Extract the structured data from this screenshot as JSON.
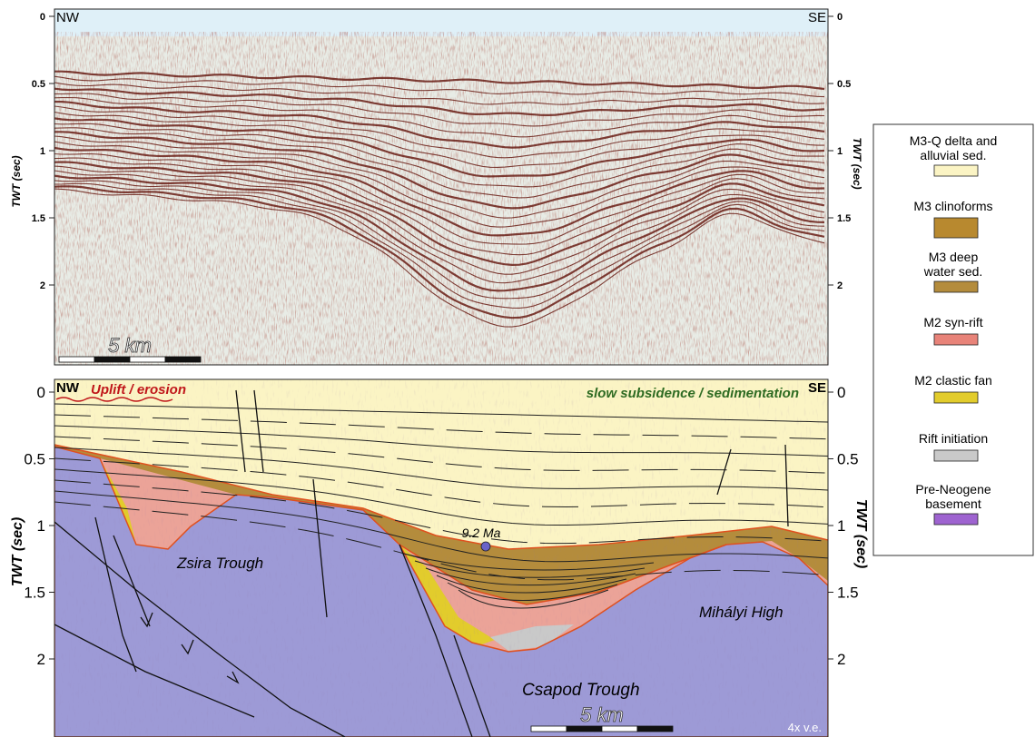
{
  "seismic": {
    "left_label": "NW",
    "right_label": "SE",
    "axis_label": "TWT (sec)",
    "ticks": [
      0,
      0.5,
      1,
      1.5,
      2
    ],
    "scale_bar": "5 km"
  },
  "interpretation": {
    "left_label": "NW",
    "right_label": "SE",
    "axis_label": "TWT (sec)",
    "ticks": [
      0,
      0.5,
      1,
      1.5,
      2
    ],
    "scale_bar": "5 km",
    "uplift": "Uplift / erosion",
    "subsidence": "slow subsidence / sedimentation",
    "age": "9.2 Ma",
    "zsira": "Zsira Trough",
    "csapod": "Csapod Trough",
    "mihalyi": "Mihályi High",
    "exaggeration": "4x v.e."
  },
  "legend": [
    {
      "label": "M3-Q delta and alluvial sed.",
      "color": "#fbf4c4"
    },
    {
      "label": "M3 clinoforms",
      "color": "#b8892f"
    },
    {
      "label": "M3 deep water sed.",
      "color": "#b48c3c"
    },
    {
      "label": "M2 syn-rift",
      "color": "#e88379"
    },
    {
      "label": "M2 clastic fan",
      "color": "#e2cc2c"
    },
    {
      "label": "Rift initiation",
      "color": "#c9c9c9"
    },
    {
      "label": "Pre-Neogene basement",
      "color": "#9e63d0"
    }
  ]
}
